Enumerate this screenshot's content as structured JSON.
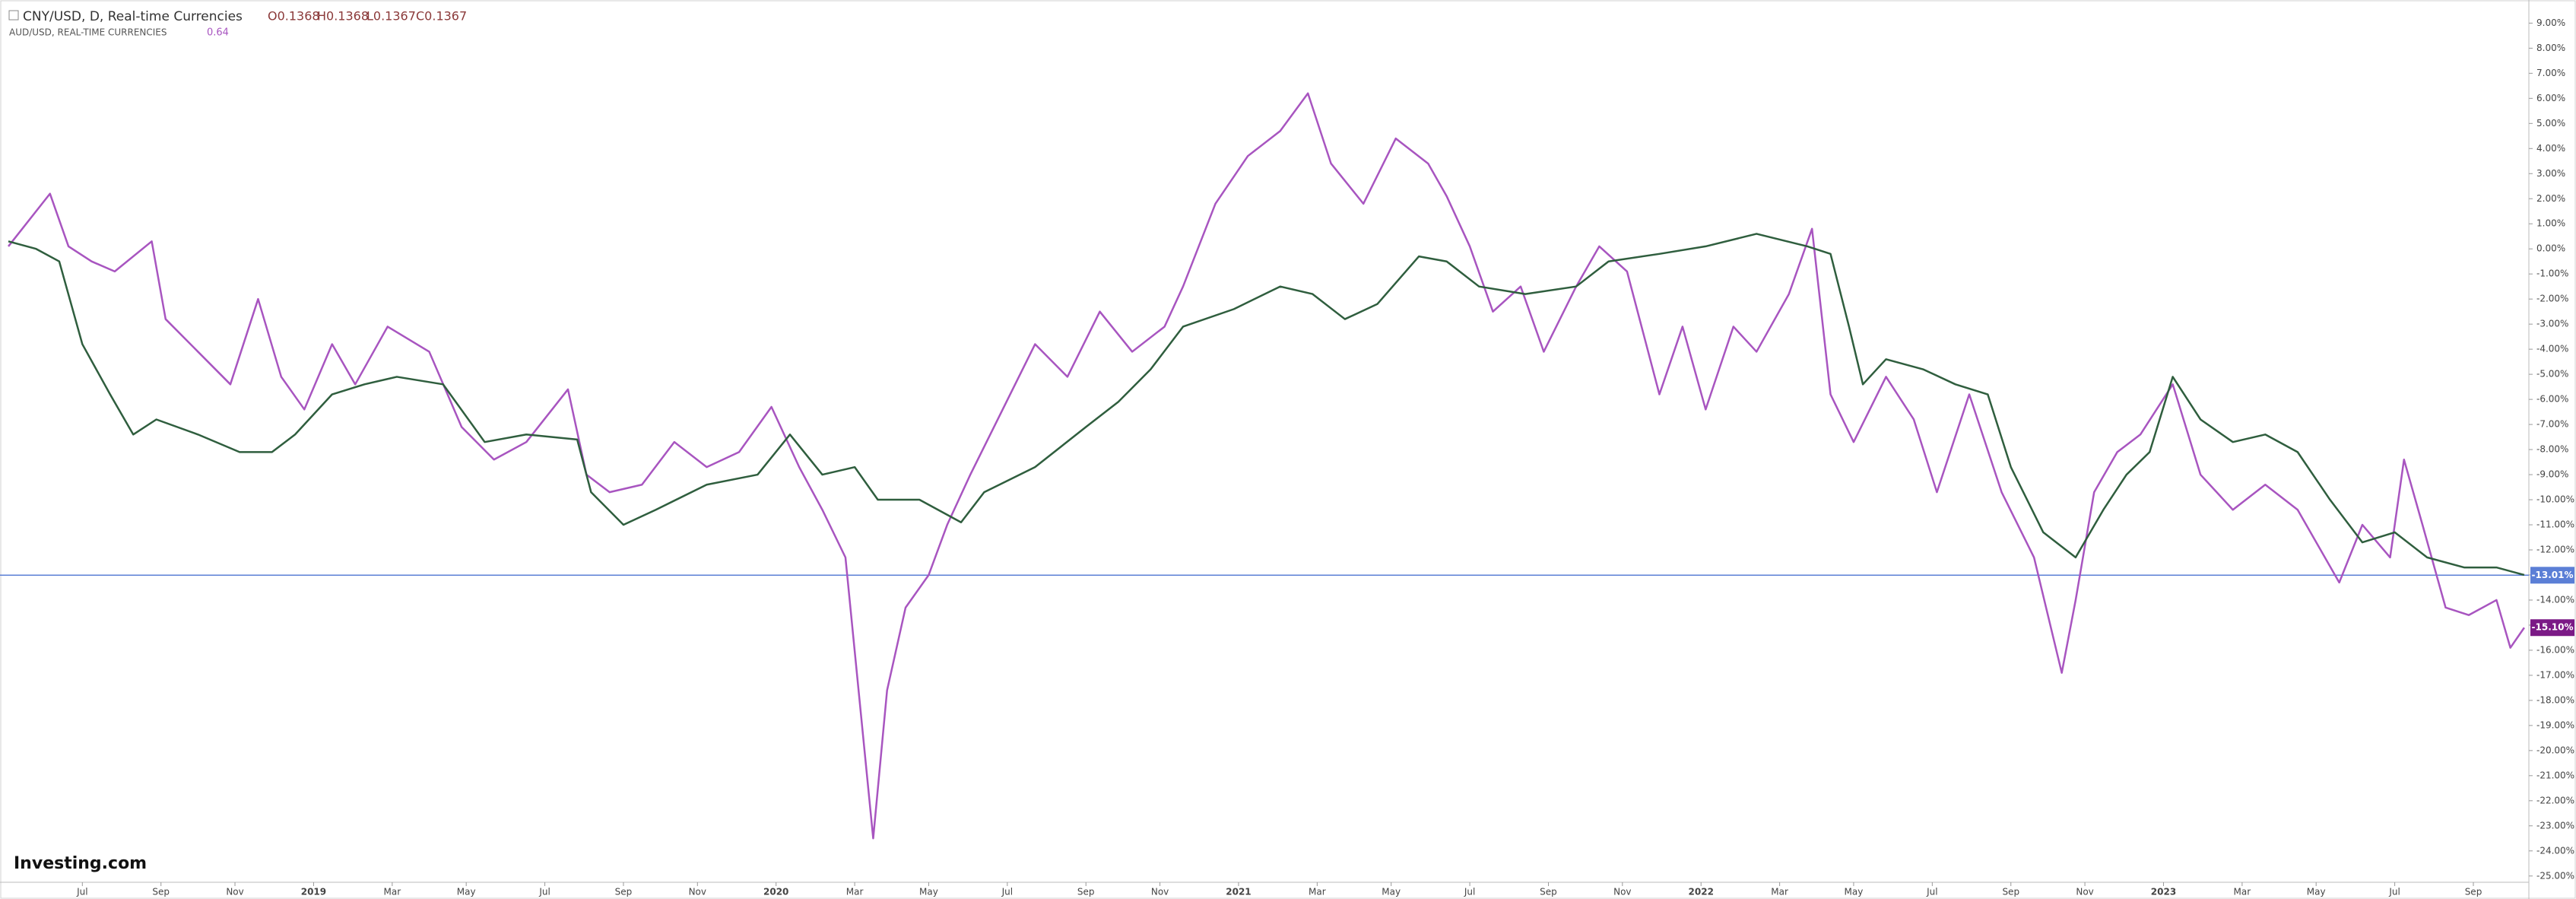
{
  "chart_data": {
    "type": "line",
    "series": [
      {
        "name": "CNY/USD, D, Real-time Currencies",
        "color": "#2f5e3e",
        "ohlc": [
          "O0.1368",
          "H0.1368",
          "L0.1367",
          "C0.1367"
        ],
        "x": [
          2018.34,
          2018.4,
          2018.45,
          2018.5,
          2018.56,
          2018.61,
          2018.66,
          2018.75,
          2018.84,
          2018.91,
          2018.96,
          2019.04,
          2019.11,
          2019.18,
          2019.28,
          2019.37,
          2019.46,
          2019.57,
          2019.6,
          2019.67,
          2019.74,
          2019.85,
          2019.96,
          2020.03,
          2020.1,
          2020.17,
          2020.22,
          2020.31,
          2020.4,
          2020.45,
          2020.56,
          2020.67,
          2020.74,
          2020.81,
          2020.88,
          2020.99,
          2021.09,
          2021.16,
          2021.23,
          2021.3,
          2021.39,
          2021.45,
          2021.52,
          2021.62,
          2021.73,
          2021.8,
          2021.91,
          2022.01,
          2022.12,
          2022.23,
          2022.28,
          2022.32,
          2022.35,
          2022.4,
          2022.48,
          2022.55,
          2022.62,
          2022.67,
          2022.74,
          2022.81,
          2022.87,
          2022.92,
          2022.97,
          2023.02,
          2023.08,
          2023.15,
          2023.22,
          2023.29,
          2023.36,
          2023.43,
          2023.5,
          2023.57,
          2023.65,
          2023.72,
          2023.78
        ],
        "values": [
          0.3,
          0,
          -0.5,
          -3.8,
          -5.8,
          -7.4,
          -6.8,
          -7.4,
          -8.1,
          -8.1,
          -7.4,
          -5.8,
          -5.4,
          -5.1,
          -5.4,
          -7.7,
          -7.4,
          -7.6,
          -9.7,
          -11,
          -10.4,
          -9.4,
          -9,
          -7.4,
          -9,
          -8.7,
          -10,
          -10,
          -10.9,
          -9.7,
          -8.7,
          -7.1,
          -6.1,
          -4.8,
          -3.1,
          -2.4,
          -1.5,
          -1.8,
          -2.8,
          -2.2,
          -0.3,
          -0.5,
          -1.5,
          -1.8,
          -1.5,
          -0.5,
          -0.2,
          0.1,
          0.6,
          0.1,
          -0.2,
          -3.1,
          -5.4,
          -4.4,
          -4.8,
          -5.4,
          -5.8,
          -8.7,
          -11.3,
          -12.3,
          -10.4,
          -9,
          -8.1,
          -5.1,
          -6.8,
          -7.7,
          -7.4,
          -8.1,
          -10,
          -11.7,
          -11.3,
          -12.3,
          -12.7,
          -12.7,
          -13
        ]
      },
      {
        "name": "AUD/USD, REAL-TIME CURRENCIES",
        "color": "#a855c0",
        "last": "0.64",
        "x": [
          2018.34,
          2018.43,
          2018.47,
          2018.52,
          2018.57,
          2018.65,
          2018.68,
          2018.75,
          2018.82,
          2018.88,
          2018.93,
          2018.98,
          2019.04,
          2019.09,
          2019.16,
          2019.25,
          2019.32,
          2019.39,
          2019.46,
          2019.55,
          2019.59,
          2019.64,
          2019.71,
          2019.78,
          2019.85,
          2019.92,
          2019.99,
          2020.05,
          2020.1,
          2020.15,
          2020.21,
          2020.24,
          2020.28,
          2020.33,
          2020.37,
          2020.42,
          2020.49,
          2020.56,
          2020.63,
          2020.7,
          2020.77,
          2020.84,
          2020.88,
          2020.95,
          2021.02,
          2021.09,
          2021.15,
          2021.2,
          2021.27,
          2021.34,
          2021.41,
          2021.45,
          2021.5,
          2021.55,
          2021.61,
          2021.66,
          2021.73,
          2021.78,
          2021.84,
          2021.91,
          2021.96,
          2022.01,
          2022.07,
          2022.12,
          2022.19,
          2022.24,
          2022.28,
          2022.33,
          2022.4,
          2022.46,
          2022.51,
          2022.58,
          2022.65,
          2022.72,
          2022.78,
          2022.81,
          2022.85,
          2022.9,
          2022.95,
          2023.02,
          2023.08,
          2023.15,
          2023.22,
          2023.29,
          2023.38,
          2023.43,
          2023.49,
          2023.52,
          2023.56,
          2023.61,
          2023.66,
          2023.72,
          2023.75,
          2023.78
        ],
        "values": [
          0.1,
          2.2,
          0.1,
          -0.5,
          -0.9,
          0.3,
          -2.8,
          -4.1,
          -5.4,
          -2,
          -5.1,
          -6.4,
          -3.8,
          -5.4,
          -3.1,
          -4.1,
          -7.1,
          -8.4,
          -7.7,
          -5.6,
          -9,
          -9.7,
          -9.4,
          -7.7,
          -8.7,
          -8.1,
          -6.3,
          -8.7,
          -10.4,
          -12.3,
          -23.5,
          -17.6,
          -14.3,
          -13,
          -11,
          -9,
          -6.4,
          -3.8,
          -5.1,
          -2.5,
          -4.1,
          -3.1,
          -1.5,
          1.8,
          3.7,
          4.7,
          6.2,
          3.4,
          1.8,
          4.4,
          3.4,
          2.1,
          0.1,
          -2.5,
          -1.5,
          -4.1,
          -1.5,
          0.1,
          -0.9,
          -5.8,
          -3.1,
          -6.4,
          -3.1,
          -4.1,
          -1.8,
          0.8,
          -5.8,
          -7.7,
          -5.1,
          -6.8,
          -9.7,
          -5.8,
          -9.7,
          -12.3,
          -16.9,
          -14,
          -9.7,
          -8.1,
          -7.4,
          -5.4,
          -9,
          -10.4,
          -9.4,
          -10.4,
          -13.3,
          -11,
          -12.3,
          -8.4,
          -11,
          -14.3,
          -14.6,
          -14,
          -15.9,
          -15.1
        ]
      }
    ],
    "price_lines": [
      {
        "value": -13.01,
        "label": "-13.01%",
        "color": "#5b7fd6",
        "line": true
      },
      {
        "value": -15.1,
        "label": "-15.10%",
        "color": "#7b1a86",
        "line": false
      }
    ],
    "logo": "Investing.com",
    "xlim": [
      2018.34,
      2023.79
    ],
    "xticks": [
      {
        "value": 2018.5,
        "label": "Jul"
      },
      {
        "value": 2018.67,
        "label": "Sep"
      },
      {
        "value": 2018.83,
        "label": "Nov"
      },
      2019,
      {
        "value": 2019.17,
        "label": "Mar"
      },
      {
        "value": 2019.33,
        "label": "May"
      },
      {
        "value": 2019.5,
        "label": "Jul"
      },
      {
        "value": 2019.67,
        "label": "Sep"
      },
      {
        "value": 2019.83,
        "label": "Nov"
      },
      2020,
      {
        "value": 2020.17,
        "label": "Mar"
      },
      {
        "value": 2020.33,
        "label": "May"
      },
      {
        "value": 2020.5,
        "label": "Jul"
      },
      {
        "value": 2020.67,
        "label": "Sep"
      },
      {
        "value": 2020.83,
        "label": "Nov"
      },
      2021,
      {
        "value": 2021.17,
        "label": "Mar"
      },
      {
        "value": 2021.33,
        "label": "May"
      },
      {
        "value": 2021.5,
        "label": "Jul"
      },
      {
        "value": 2021.67,
        "label": "Sep"
      },
      {
        "value": 2021.83,
        "label": "Nov"
      },
      2022,
      {
        "value": 2022.17,
        "label": "Mar"
      },
      {
        "value": 2022.33,
        "label": "May"
      },
      {
        "value": 2022.5,
        "label": "Jul"
      },
      {
        "value": 2022.67,
        "label": "Sep"
      },
      {
        "value": 2022.83,
        "label": "Nov"
      },
      2023,
      {
        "value": 2023.17,
        "label": "Mar"
      },
      {
        "value": 2023.33,
        "label": "May"
      },
      {
        "value": 2023.5,
        "label": "Jul"
      },
      {
        "value": 2023.67,
        "label": "Sep"
      }
    ],
    "ylim": [
      -25.25,
      9.8
    ],
    "yticks": [
      {
        "value": 9,
        "label": "9.00%"
      },
      {
        "value": 8,
        "label": "8.00%"
      },
      {
        "value": 7,
        "label": "7.00%"
      },
      {
        "value": 6,
        "label": "6.00%"
      },
      {
        "value": 5,
        "label": "5.00%"
      },
      {
        "value": 4,
        "label": "4.00%"
      },
      {
        "value": 3,
        "label": "3.00%"
      },
      {
        "value": 2,
        "label": "2.00%"
      },
      {
        "value": 1,
        "label": "1.00%"
      },
      {
        "value": 0,
        "label": "0.00%"
      },
      {
        "value": -1,
        "label": "-1.00%"
      },
      {
        "value": -2,
        "label": "-2.00%"
      },
      {
        "value": -3,
        "label": "-3.00%"
      },
      {
        "value": -4,
        "label": "-4.00%"
      },
      {
        "value": -5,
        "label": "-5.00%"
      },
      {
        "value": -6,
        "label": "-6.00%"
      },
      {
        "value": -7,
        "label": "-7.00%"
      },
      {
        "value": -8,
        "label": "-8.00%"
      },
      {
        "value": -9,
        "label": "-9.00%"
      },
      {
        "value": -10,
        "label": "-10.00%"
      },
      {
        "value": -11,
        "label": "-11.00%"
      },
      {
        "value": -12,
        "label": "-12.00%"
      },
      {
        "value": -13,
        "label": "-13.00%"
      },
      {
        "value": -14,
        "label": "-14.00%"
      },
      {
        "value": -15,
        "label": "-15.00%"
      },
      {
        "value": -16,
        "label": "-16.00%"
      },
      {
        "value": -17,
        "label": "-17.00%"
      },
      {
        "value": -18,
        "label": "-18.00%"
      },
      {
        "value": -19,
        "label": "-19.00%"
      },
      {
        "value": -20,
        "label": "-20.00%"
      },
      {
        "value": -21,
        "label": "-21.00%"
      },
      {
        "value": -22,
        "label": "-22.00%"
      },
      {
        "value": -23,
        "label": "-23.00%"
      },
      {
        "value": -24,
        "label": "-24.00%"
      },
      {
        "value": -25,
        "label": "-25.00%"
      }
    ],
    "grid": false
  }
}
